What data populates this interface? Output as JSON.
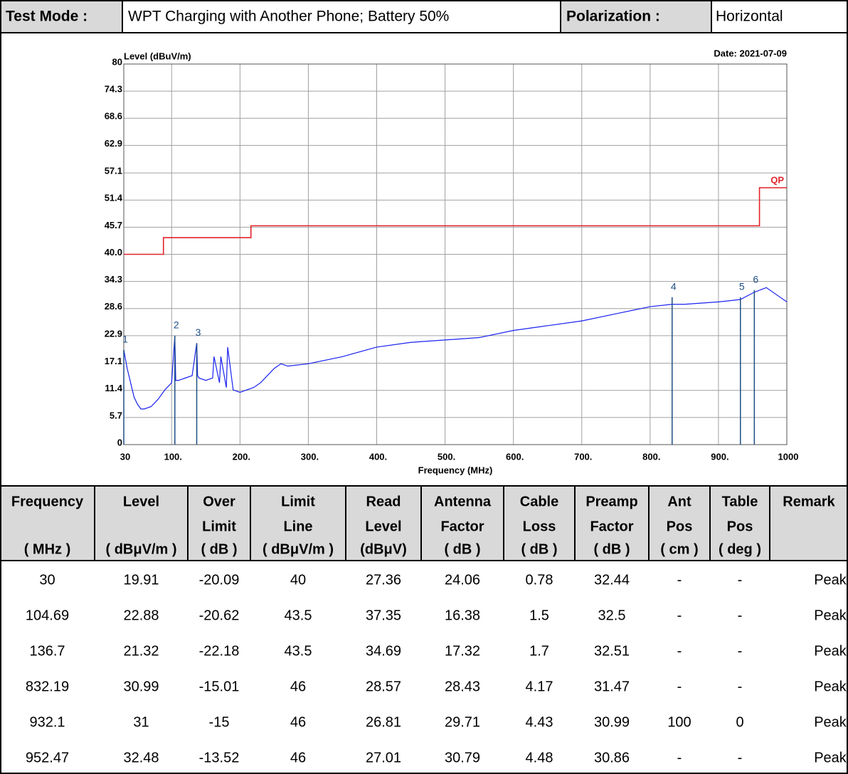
{
  "header": {
    "test_mode_label": "Test Mode :",
    "test_mode": "WPT Charging with Another Phone; Battery 50%",
    "polarization_label": "Polarization :",
    "polarization": "Horizontal"
  },
  "chart_data": {
    "type": "line",
    "y_label": "Level (dBuV/m)",
    "date": "Date: 2021-07-09",
    "x_label": "Frequency (MHz)",
    "xlim": [
      30,
      1000
    ],
    "ylim": [
      0,
      80
    ],
    "xticks": [
      30,
      {
        "value": 100,
        "label": "100."
      },
      {
        "value": 200,
        "label": "200."
      },
      {
        "value": 300,
        "label": "300."
      },
      {
        "value": 400,
        "label": "400."
      },
      {
        "value": 500,
        "label": "500."
      },
      {
        "value": 600,
        "label": "600."
      },
      {
        "value": 700,
        "label": "700."
      },
      {
        "value": 800,
        "label": "800."
      },
      {
        "value": 900,
        "label": "900."
      },
      1000
    ],
    "yticks": [
      0,
      5.7,
      11.4,
      17.1,
      22.9,
      28.6,
      34.3,
      {
        "value": 40,
        "label": "40.0"
      },
      45.7,
      51.4,
      57.1,
      62.9,
      68.6,
      74.3,
      80
    ],
    "grid": true,
    "series": [
      {
        "name": "QP",
        "color": "#e2222a",
        "x": [
          30,
          88,
          88,
          216,
          216,
          960,
          960,
          1000
        ],
        "values": [
          40,
          40,
          43.5,
          43.5,
          46,
          46,
          54,
          54
        ]
      },
      {
        "color": "#1a22f0",
        "x": [
          30,
          35,
          40,
          45,
          50,
          55,
          60,
          70,
          80,
          90,
          100,
          104.69,
          106,
          110,
          120,
          130,
          136.7,
          138,
          140,
          150,
          160,
          162,
          170,
          172,
          180,
          182,
          190,
          200,
          210,
          220,
          230,
          240,
          250,
          260,
          270,
          300,
          350,
          400,
          450,
          500,
          550,
          600,
          650,
          700,
          750,
          800,
          832,
          850,
          900,
          932,
          952,
          970,
          990,
          1000
        ],
        "values": [
          19.9,
          16,
          13,
          10,
          8.5,
          7.5,
          7.5,
          8,
          9.5,
          11.5,
          13,
          22.88,
          13.5,
          13.5,
          14,
          14.5,
          21.32,
          14.5,
          14,
          13.5,
          14,
          18.5,
          13,
          18.5,
          12,
          20.5,
          11.5,
          11,
          11.5,
          12,
          13,
          14.5,
          16,
          17,
          16.5,
          17,
          18.5,
          20.5,
          21.5,
          22,
          22.5,
          24,
          25,
          26,
          27.5,
          29,
          29.5,
          29.5,
          30,
          30.5,
          32,
          33,
          31,
          30
        ]
      }
    ],
    "markers": {
      "labels": [
        "1",
        "2",
        "3",
        "4",
        "5",
        "6"
      ],
      "x": [
        30,
        104.69,
        136.7,
        832.19,
        932.1,
        952.47
      ],
      "values": [
        19.91,
        22.88,
        21.32,
        30.99,
        31,
        32.48
      ],
      "color": "#1f4f86"
    }
  },
  "table": {
    "columns": [
      {
        "name": [
          "Frequency"
        ],
        "unit": "( MHz )"
      },
      {
        "name": [
          "Level"
        ],
        "unit": "( dBμV/m )"
      },
      {
        "name": [
          "Over",
          "Limit"
        ],
        "unit": "( dB )"
      },
      {
        "name": [
          "Limit",
          "Line"
        ],
        "unit": "( dBμV/m )"
      },
      {
        "name": [
          "Read",
          "Level"
        ],
        "unit": "(dBμV)"
      },
      {
        "name": [
          "Antenna",
          "Factor"
        ],
        "unit": "( dB )"
      },
      {
        "name": [
          "Cable",
          "Loss"
        ],
        "unit": "( dB )"
      },
      {
        "name": [
          "Preamp",
          "Factor"
        ],
        "unit": "( dB )"
      },
      {
        "name": [
          "Ant",
          "Pos"
        ],
        "unit": "( cm )"
      },
      {
        "name": [
          "Table",
          "Pos"
        ],
        "unit": "( deg )"
      },
      {
        "name": [
          "Remark"
        ]
      }
    ],
    "rows": [
      [
        30,
        19.91,
        -20.09,
        40,
        27.36,
        24.06,
        0.78,
        32.44,
        "-",
        "-",
        "Peak"
      ],
      [
        104.69,
        22.88,
        -20.62,
        43.5,
        37.35,
        16.38,
        1.5,
        32.5,
        "-",
        "-",
        "Peak"
      ],
      [
        136.7,
        21.32,
        -22.18,
        43.5,
        34.69,
        17.32,
        1.7,
        32.51,
        "-",
        "-",
        "Peak"
      ],
      [
        832.19,
        30.99,
        -15.01,
        46,
        28.57,
        28.43,
        4.17,
        31.47,
        "-",
        "-",
        "Peak"
      ],
      [
        932.1,
        31,
        -15,
        46,
        26.81,
        29.71,
        4.43,
        30.99,
        100,
        0,
        "Peak"
      ],
      [
        952.47,
        32.48,
        -13.52,
        46,
        27.01,
        30.79,
        4.48,
        30.86,
        "-",
        "-",
        "Peak"
      ]
    ]
  }
}
